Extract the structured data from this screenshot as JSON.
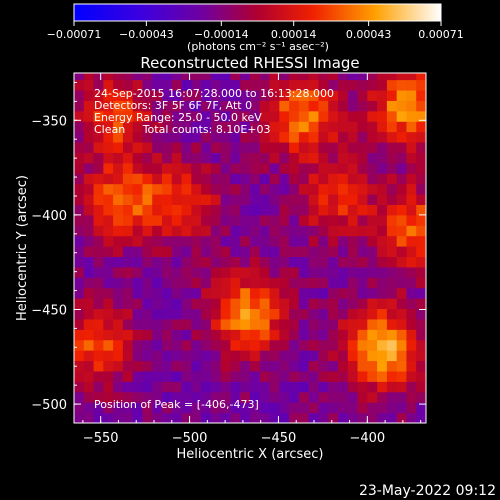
{
  "chart_data": {
    "type": "heatmap",
    "title": "Reconstructed RHESSI Image",
    "xlabel": "Heliocentric X (arcsec)",
    "ylabel": "Heliocentric Y (arcsec)",
    "xlim": [
      -565,
      -367
    ],
    "ylim": [
      -510,
      -325
    ],
    "x_ticks": [
      -550,
      -500,
      -450,
      -400
    ],
    "y_ticks": [
      -500,
      -450,
      -400,
      -350
    ],
    "x_tick_labels": [
      "−550",
      "−500",
      "−450",
      "−400"
    ],
    "y_tick_labels": [
      "−500",
      "−450",
      "−400",
      "−350"
    ],
    "colorbar": {
      "min": -0.00071,
      "max": 0.00071,
      "ticks": [
        -0.00071,
        -0.00043,
        -0.00014,
        0.00014,
        0.00043,
        0.00071
      ],
      "tick_labels": [
        "−0.00071",
        "−0.00043",
        "−0.00014",
        "0.00014",
        "0.00043",
        "0.00071"
      ],
      "unit_label": "(photons cm⁻² s⁻¹ asec⁻²)",
      "colormap": [
        "#0000ff",
        "#4a00d0",
        "#7a0080",
        "#d00000",
        "#ff6000",
        "#ffc000",
        "#ffffff"
      ]
    },
    "annotations": [
      "24-Sep-2015 16:07:28.000 to 16:13:28.000",
      "Detectors: 3F 5F 6F 7F, Att 0",
      "Energy Range: 25.0 - 50.0 keV",
      "Clean     Total counts: 8.10E+03"
    ],
    "peak_label": "Position of Peak = [-406,-473]",
    "peak": [
      -406,
      -473
    ],
    "sources": [
      {
        "x": -395,
        "y": -473,
        "value": 0.00071
      },
      {
        "x": -470,
        "y": -455,
        "value": 0.0006
      },
      {
        "x": -540,
        "y": -395,
        "value": 0.00052
      },
      {
        "x": -545,
        "y": -350,
        "value": 0.00045
      },
      {
        "x": -440,
        "y": -350,
        "value": 0.00055
      },
      {
        "x": -380,
        "y": -345,
        "value": 0.0006
      },
      {
        "x": -375,
        "y": -410,
        "value": 0.0005
      },
      {
        "x": -505,
        "y": -395,
        "value": 0.00035
      },
      {
        "x": -555,
        "y": -470,
        "value": 0.00045
      },
      {
        "x": -420,
        "y": -395,
        "value": 0.00035
      }
    ]
  },
  "timestamp": "23-May-2022 09:12"
}
